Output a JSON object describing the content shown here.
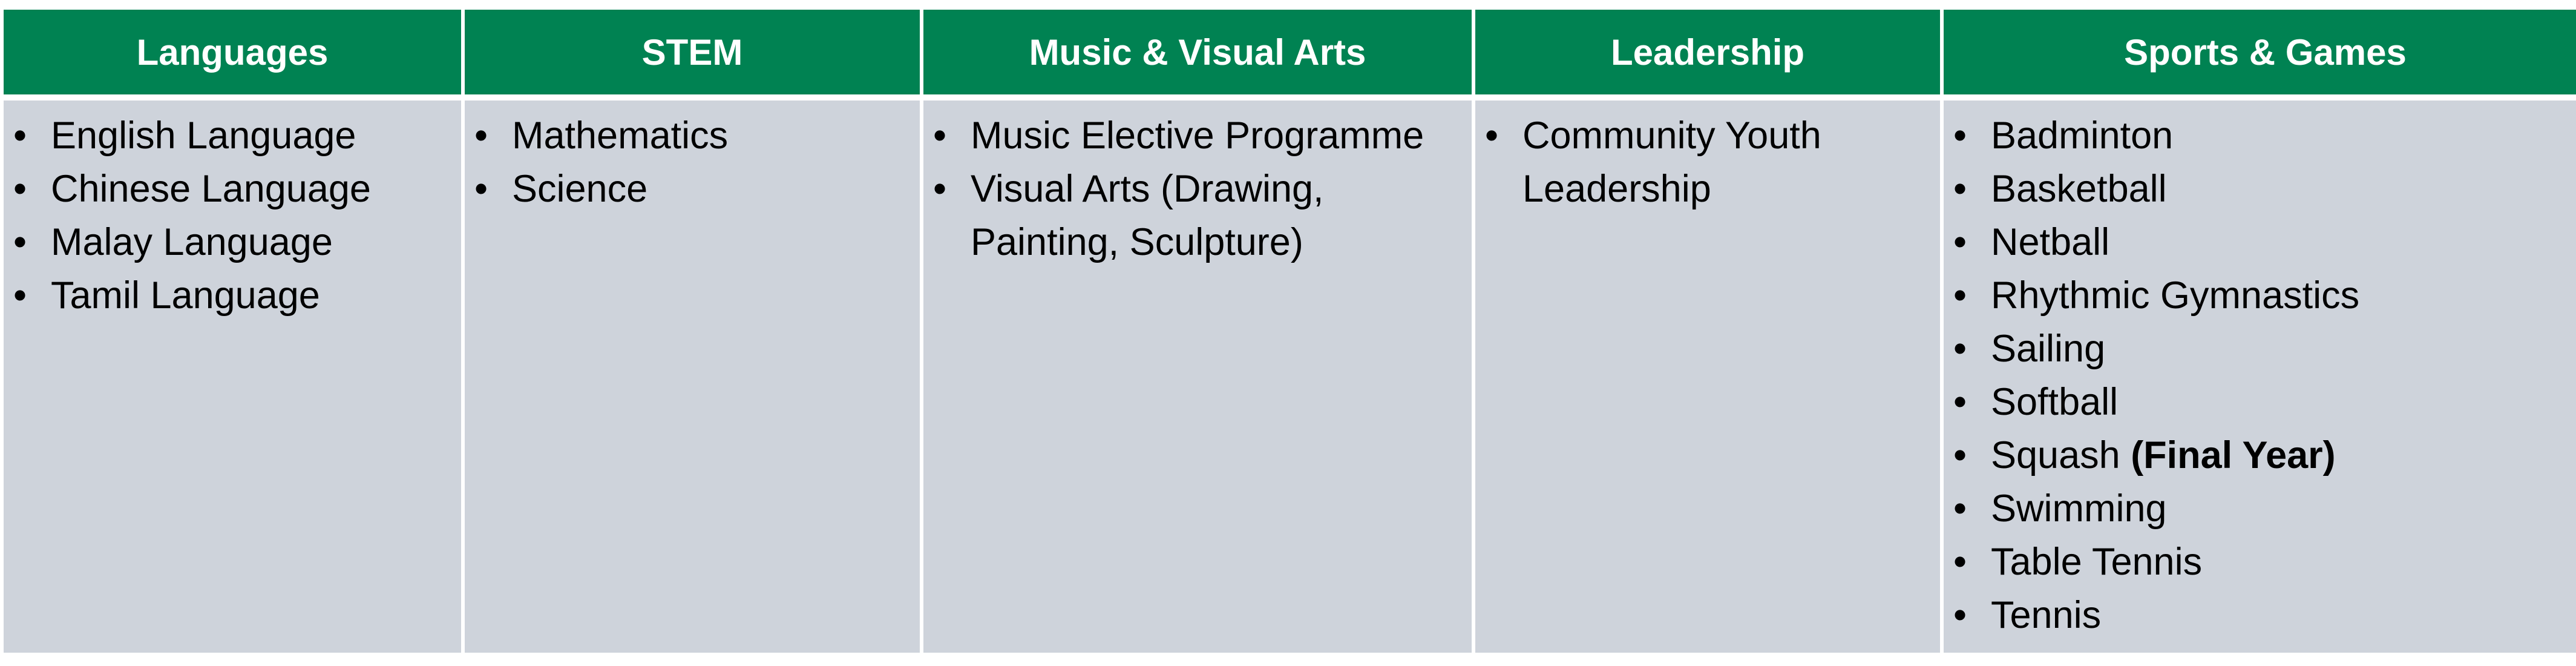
{
  "columns": [
    {
      "header": "Languages",
      "items": [
        "English Language",
        "Chinese Language",
        "Malay Language",
        "Tamil Language"
      ]
    },
    {
      "header": "STEM",
      "items": [
        "Mathematics",
        "Science"
      ]
    },
    {
      "header": "Music & Visual Arts",
      "items": [
        "Music Elective Programme",
        "Visual Arts (Drawing, Painting, Sculpture)"
      ]
    },
    {
      "header": "Leadership",
      "items": [
        "Community Youth Leadership"
      ]
    },
    {
      "header": "Sports & Games",
      "items": [
        "Badminton",
        "Basketball",
        "Netball",
        "Rhythmic Gymnastics",
        "Sailing",
        "Softball",
        "Squash",
        "Swimming",
        "Table Tennis",
        "Tennis"
      ],
      "squash_note": "(Final Year)"
    }
  ],
  "bullet": "•",
  "colors": {
    "header_bg": "#008252",
    "header_text": "#ffffff",
    "body_bg": "#ced3db"
  }
}
